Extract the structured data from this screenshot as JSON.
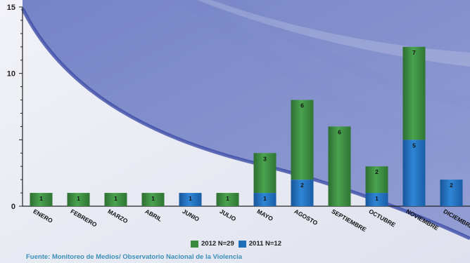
{
  "chart_data": {
    "type": "bar",
    "stacked": true,
    "categories": [
      "ENERO",
      "FEBRERO",
      "MARZO",
      "ABRIL",
      "JUNIO",
      "JULIO",
      "MAYO",
      "AGOSTO",
      "SEPTIEMBRE",
      "OCTUBRE",
      "NOVIEMBRE",
      "DICIEMBRE"
    ],
    "series": [
      {
        "name": "2011 N=12",
        "color": "#1f6fb8",
        "values": [
          0,
          0,
          0,
          0,
          1,
          0,
          1,
          2,
          0,
          1,
          5,
          2
        ]
      },
      {
        "name": "2012 N=29",
        "color": "#3b8a3f",
        "values": [
          1,
          1,
          1,
          1,
          0,
          1,
          3,
          6,
          6,
          2,
          7,
          0
        ]
      }
    ],
    "ylim": [
      0,
      15
    ],
    "y_ticks": [
      "0",
      "10",
      "15"
    ],
    "legend_order": [
      "2012 N=29",
      "2011 N=12"
    ],
    "legend_position": "bottom",
    "source": "Fuente: Monitoreo de Medios/ Observatorio Nacional de la Violencia",
    "source_color": "#3b8fb8"
  }
}
